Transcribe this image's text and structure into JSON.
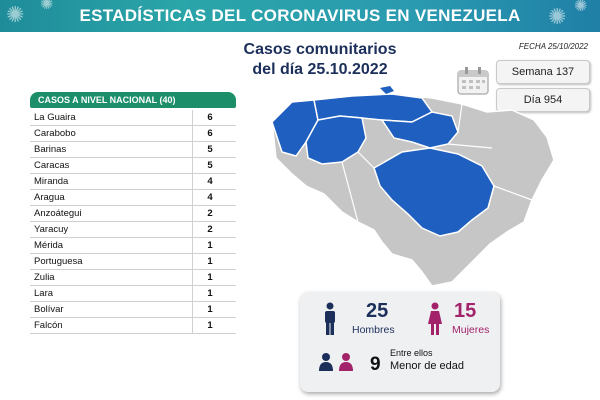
{
  "header": {
    "title": "ESTADÍSTICAS DEL CORONAVIRUS EN VENEZUELA"
  },
  "subtitle": {
    "line1": "Casos comunitarios",
    "line2": "del día 25.10.2022"
  },
  "fecha": "FECHA 25/10/2022",
  "week": "Semana 137",
  "day": "Día 954",
  "table": {
    "header": "CASOS A NIVEL NACIONAL (40)",
    "rows": [
      {
        "state": "La Guaira",
        "cases": "6"
      },
      {
        "state": "Carabobo",
        "cases": "6"
      },
      {
        "state": "Barinas",
        "cases": "5"
      },
      {
        "state": "Caracas",
        "cases": "5"
      },
      {
        "state": "Miranda",
        "cases": "4"
      },
      {
        "state": "Aragua",
        "cases": "4"
      },
      {
        "state": "Anzoátegui",
        "cases": "2"
      },
      {
        "state": "Yaracuy",
        "cases": "2"
      },
      {
        "state": "Mérida",
        "cases": "1"
      },
      {
        "state": "Portuguesa",
        "cases": "1"
      },
      {
        "state": "Zulia",
        "cases": "1"
      },
      {
        "state": "Lara",
        "cases": "1"
      },
      {
        "state": "Bolívar",
        "cases": "1"
      },
      {
        "state": "Falcón",
        "cases": "1"
      }
    ]
  },
  "stats": {
    "men_count": "25",
    "men_label": "Hombres",
    "women_count": "15",
    "women_label": "Mujeres",
    "minors_intro": "Entre ellos",
    "minors_count": "9",
    "minors_label": "Menor de edad"
  },
  "colors": {
    "banner": "#2aa5a8",
    "table_header": "#1c8f6a",
    "map_highlight": "#1f5fbf",
    "map_base": "#c6c6c6",
    "men": "#1b2f5a",
    "women": "#a3236a"
  },
  "icons": [
    "virus-icon",
    "calendar-icon",
    "man-icon",
    "woman-icon",
    "people-icon"
  ]
}
